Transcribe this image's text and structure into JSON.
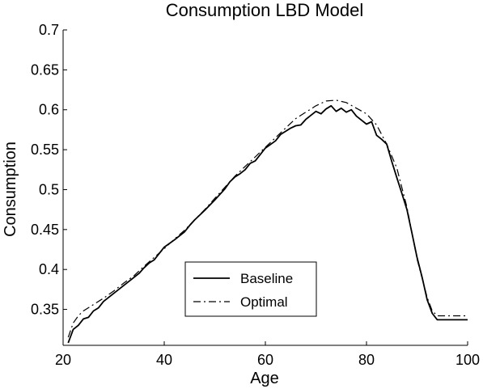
{
  "chart_data": {
    "type": "line",
    "title": "Consumption LBD Model",
    "xlabel": "Age",
    "ylabel": "Consumption",
    "xlim": [
      20,
      100
    ],
    "ylim": [
      0.305,
      0.7
    ],
    "x_ticks": [
      20,
      40,
      60,
      80,
      100
    ],
    "x_tick_labels": [
      "20",
      "40",
      "60",
      "80",
      "100"
    ],
    "y_ticks": [
      0.35,
      0.4,
      0.45,
      0.5,
      0.55,
      0.6,
      0.65,
      0.7
    ],
    "y_tick_labels": [
      "0.35",
      "0.4",
      "0.45",
      "0.5",
      "0.55",
      "0.6",
      "0.65",
      "0.7"
    ],
    "grid": false,
    "legend_position": "lower-center",
    "series": [
      {
        "name": "Baseline",
        "style": "solid",
        "color": "#000000",
        "points": [
          [
            21,
            0.308
          ],
          [
            22,
            0.325
          ],
          [
            23,
            0.33
          ],
          [
            24,
            0.338
          ],
          [
            25,
            0.34
          ],
          [
            26,
            0.348
          ],
          [
            27,
            0.352
          ],
          [
            28,
            0.36
          ],
          [
            30,
            0.37
          ],
          [
            32,
            0.38
          ],
          [
            34,
            0.39
          ],
          [
            35,
            0.395
          ],
          [
            36,
            0.402
          ],
          [
            37,
            0.408
          ],
          [
            38,
            0.412
          ],
          [
            40,
            0.428
          ],
          [
            42,
            0.437
          ],
          [
            44,
            0.447
          ],
          [
            45,
            0.455
          ],
          [
            46,
            0.462
          ],
          [
            48,
            0.474
          ],
          [
            50,
            0.487
          ],
          [
            52,
            0.501
          ],
          [
            53,
            0.51
          ],
          [
            54,
            0.516
          ],
          [
            55,
            0.52
          ],
          [
            56,
            0.525
          ],
          [
            57,
            0.533
          ],
          [
            58,
            0.536
          ],
          [
            60,
            0.552
          ],
          [
            62,
            0.561
          ],
          [
            63,
            0.569
          ],
          [
            64,
            0.573
          ],
          [
            65,
            0.577
          ],
          [
            66,
            0.58
          ],
          [
            67,
            0.581
          ],
          [
            68,
            0.588
          ],
          [
            69,
            0.593
          ],
          [
            70,
            0.598
          ],
          [
            71,
            0.595
          ],
          [
            72,
            0.601
          ],
          [
            73,
            0.605
          ],
          [
            74,
            0.598
          ],
          [
            75,
            0.602
          ],
          [
            76,
            0.597
          ],
          [
            77,
            0.6
          ],
          [
            78,
            0.592
          ],
          [
            79,
            0.587
          ],
          [
            80,
            0.582
          ],
          [
            81,
            0.585
          ],
          [
            82,
            0.568
          ],
          [
            83,
            0.563
          ],
          [
            84,
            0.557
          ],
          [
            85,
            0.535
          ],
          [
            86,
            0.515
          ],
          [
            87,
            0.495
          ],
          [
            88,
            0.475
          ],
          [
            89,
            0.445
          ],
          [
            90,
            0.415
          ],
          [
            91,
            0.39
          ],
          [
            92,
            0.362
          ],
          [
            93,
            0.345
          ],
          [
            94,
            0.337
          ],
          [
            96,
            0.337
          ],
          [
            100,
            0.337
          ]
        ]
      },
      {
        "name": "Optimal",
        "style": "dashdot",
        "color": "#000000",
        "points": [
          [
            21,
            0.315
          ],
          [
            22,
            0.333
          ],
          [
            23,
            0.342
          ],
          [
            24,
            0.348
          ],
          [
            26,
            0.356
          ],
          [
            28,
            0.364
          ],
          [
            30,
            0.373
          ],
          [
            32,
            0.383
          ],
          [
            34,
            0.392
          ],
          [
            36,
            0.404
          ],
          [
            38,
            0.415
          ],
          [
            40,
            0.426
          ],
          [
            42,
            0.438
          ],
          [
            44,
            0.449
          ],
          [
            46,
            0.462
          ],
          [
            48,
            0.475
          ],
          [
            50,
            0.489
          ],
          [
            52,
            0.503
          ],
          [
            54,
            0.517
          ],
          [
            56,
            0.529
          ],
          [
            58,
            0.541
          ],
          [
            60,
            0.553
          ],
          [
            62,
            0.565
          ],
          [
            64,
            0.577
          ],
          [
            66,
            0.589
          ],
          [
            68,
            0.597
          ],
          [
            70,
            0.605
          ],
          [
            72,
            0.611
          ],
          [
            74,
            0.612
          ],
          [
            76,
            0.609
          ],
          [
            78,
            0.602
          ],
          [
            80,
            0.595
          ],
          [
            82,
            0.581
          ],
          [
            84,
            0.557
          ],
          [
            86,
            0.527
          ],
          [
            88,
            0.478
          ],
          [
            90,
            0.413
          ],
          [
            92,
            0.365
          ],
          [
            93,
            0.348
          ],
          [
            94,
            0.342
          ],
          [
            100,
            0.342
          ]
        ]
      }
    ]
  }
}
